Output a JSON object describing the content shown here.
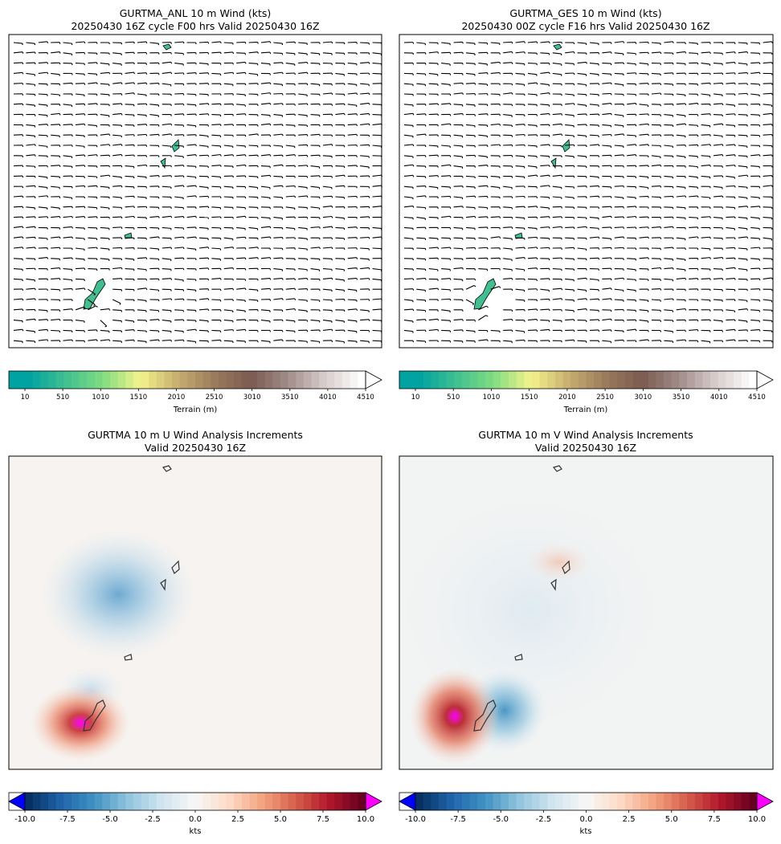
{
  "panels": [
    {
      "title_line1": "GURTMA_ANL 10 m Wind (kts)",
      "title_line2": "20250430 16Z cycle F00 hrs Valid 20250430 16Z"
    },
    {
      "title_line1": "GURTMA_GES 10 m Wind (kts)",
      "title_line2": "20250430 00Z cycle F16 hrs Valid 20250430 16Z"
    },
    {
      "title_line1": "GURTMA 10 m U Wind Analysis Increments",
      "title_line2": "Valid 20250430 16Z"
    },
    {
      "title_line1": "GURTMA 10 m V Wind Analysis Increments",
      "title_line2": "Valid 20250430 16Z"
    }
  ],
  "colorbars": {
    "terrain": {
      "label": "Terrain (m)",
      "ticks": [
        "10",
        "510",
        "1010",
        "1510",
        "2010",
        "2510",
        "3010",
        "3510",
        "4010",
        "4510"
      ],
      "tick_values": [
        10,
        510,
        1010,
        1510,
        2010,
        2510,
        3010,
        3510,
        4010,
        4510
      ],
      "range": [
        10,
        4510
      ],
      "extend": "max",
      "colors": [
        "#00a2a2",
        "#40c090",
        "#80dc80",
        "#f4f48c",
        "#c8b070",
        "#9c7c5c",
        "#7a5a50",
        "#a08c88",
        "#d8cccc",
        "#ffffff"
      ]
    },
    "increment": {
      "label": "kts",
      "ticks": [
        "-10.0",
        "-7.5",
        "-5.0",
        "-2.5",
        "0.0",
        "2.5",
        "5.0",
        "7.5",
        "10.0"
      ],
      "tick_values": [
        -10,
        -7.5,
        -5,
        -2.5,
        0,
        2.5,
        5,
        7.5,
        10
      ],
      "range": [
        -10,
        10
      ],
      "extend": "both",
      "under_color": "#0000ff",
      "over_color": "#ff00ff",
      "colors": [
        "#053061",
        "#2166ac",
        "#4393c3",
        "#92c5de",
        "#d1e5f0",
        "#f7f7f7",
        "#fddbc7",
        "#f4a582",
        "#d6604d",
        "#b2182b",
        "#67001f"
      ]
    }
  },
  "chart_data": [
    {
      "type": "barbs",
      "title": "GURTMA_ANL 10 m Wind (kts)\n20250430 16Z cycle F00 hrs Valid 20250430 16Z",
      "field": "10 m wind barbs (kts) over terrain shading (m)",
      "barb_grid": [
        30,
        30
      ],
      "prevailing_wind": "easterly, approx. 10-15 kts",
      "terrain_range": [
        10,
        4510
      ]
    },
    {
      "type": "barbs",
      "title": "GURTMA_GES 10 m Wind (kts)\n20250430 00Z cycle F16 hrs Valid 20250430 16Z",
      "field": "10 m wind barbs (kts) over terrain shading (m)",
      "barb_grid": [
        30,
        30
      ],
      "prevailing_wind": "easterly, approx. 10-15 kts",
      "terrain_range": [
        10,
        4510
      ]
    },
    {
      "type": "heatmap",
      "title": "GURTMA 10 m U Wind Analysis Increments\nValid 20250430 16Z",
      "colorbar_label": "kts",
      "vmin": -10,
      "vmax": 10,
      "features": [
        {
          "sign": "negative",
          "value_kts": -4.5,
          "location": "central-left, west of northern islands"
        },
        {
          "sign": "positive",
          "value_kts": 10.0,
          "location": "southwest of Guam"
        },
        {
          "sign": "negative",
          "value_kts": -2.0,
          "location": "north of Guam"
        }
      ]
    },
    {
      "type": "heatmap",
      "title": "GURTMA 10 m V Wind Analysis Increments\nValid 20250430 16Z",
      "colorbar_label": "kts",
      "vmin": -10,
      "vmax": 10,
      "features": [
        {
          "sign": "positive",
          "value_kts": 10.0,
          "location": "west of Guam"
        },
        {
          "sign": "negative",
          "value_kts": -6.0,
          "location": "east of Guam"
        },
        {
          "sign": "positive",
          "value_kts": 1.5,
          "location": "near Tinian/Saipan"
        }
      ]
    }
  ]
}
